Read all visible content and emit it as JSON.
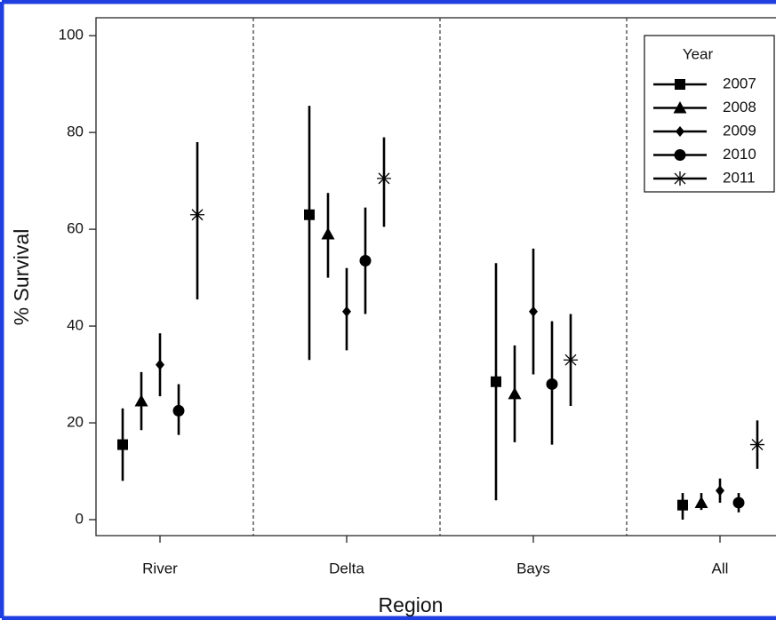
{
  "chart_data": {
    "type": "errorbar",
    "xlabel": "Region",
    "ylabel": "% Survival",
    "categories": [
      "River",
      "Delta",
      "Bays",
      "All"
    ],
    "ylim": [
      -3.3,
      103.7
    ],
    "yticks": [
      0,
      20,
      40,
      60,
      80,
      100
    ],
    "legend": "top-right",
    "legend_title": "Year",
    "separators": true,
    "series": [
      {
        "name": "2007",
        "color": "#000000",
        "marker": "square",
        "values": [
          15.5,
          63,
          28.5,
          3
        ],
        "lower": [
          8,
          33,
          4,
          0
        ],
        "upper": [
          23,
          85.5,
          53,
          5.5
        ]
      },
      {
        "name": "2008",
        "color": "#000000",
        "marker": "triangle",
        "values": [
          24.5,
          59,
          26,
          3.5
        ],
        "lower": [
          18.5,
          50,
          16,
          2
        ],
        "upper": [
          30.5,
          67.5,
          36,
          5.5
        ]
      },
      {
        "name": "2009",
        "color": "#000000",
        "marker": "diamond",
        "values": [
          32,
          43,
          43,
          6
        ],
        "lower": [
          25.5,
          35,
          30,
          3.5
        ],
        "upper": [
          38.5,
          52,
          56,
          8.5
        ]
      },
      {
        "name": "2010",
        "color": "#000000",
        "marker": "circle",
        "values": [
          22.5,
          53.5,
          28,
          3.5
        ],
        "lower": [
          17.5,
          42.5,
          15.5,
          1.5
        ],
        "upper": [
          28,
          64.5,
          41,
          5.5
        ]
      },
      {
        "name": "2011",
        "color": "#000000",
        "marker": "asterisk",
        "values": [
          63,
          70.5,
          33,
          15.5
        ],
        "lower": [
          45.5,
          60.5,
          23.5,
          10.5
        ],
        "upper": [
          78,
          79,
          42.5,
          20.5
        ]
      }
    ]
  }
}
